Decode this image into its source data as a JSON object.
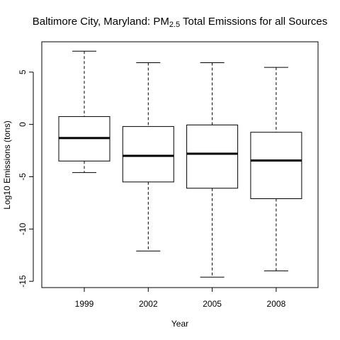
{
  "chart_data": {
    "type": "boxplot",
    "title": {
      "main": "Baltimore City, Maryland: PM",
      "subscript": "2.5",
      "rest": " Total Emissions for all Sources"
    },
    "xlabel": "Year",
    "ylabel": "Log10 Emissions (tons)",
    "categories": [
      "1999",
      "2002",
      "2005",
      "2008"
    ],
    "yticks": [
      5,
      0,
      -5,
      -10,
      -15
    ],
    "ylim": [
      -15.6,
      7.9
    ],
    "grid": false,
    "legend": "none",
    "boxes": [
      {
        "category": "1999",
        "whisker_low": -4.6,
        "q1": -3.5,
        "median": -1.3,
        "q3": 0.75,
        "whisker_high": 7.0
      },
      {
        "category": "2002",
        "whisker_low": -12.1,
        "q1": -5.5,
        "median": -3.0,
        "q3": -0.2,
        "whisker_high": 5.9
      },
      {
        "category": "2005",
        "whisker_low": -14.6,
        "q1": -6.1,
        "median": -2.8,
        "q3": -0.05,
        "whisker_high": 5.9
      },
      {
        "category": "2008",
        "whisker_low": -14.0,
        "q1": -7.1,
        "median": -3.45,
        "q3": -0.75,
        "whisker_high": 5.45
      }
    ]
  }
}
